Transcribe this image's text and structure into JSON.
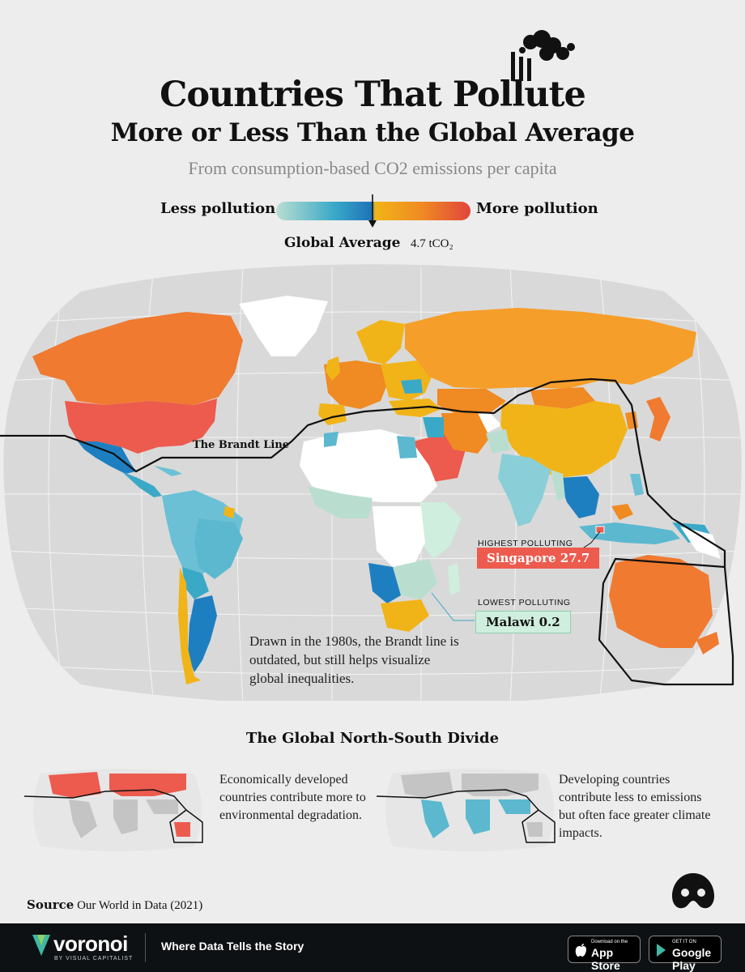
{
  "title_line1": "Countries That Pollute",
  "title_line2": "More or Less Than the Global Average",
  "subtitle": "From consumption-based CO2 emissions per capita",
  "legend": {
    "less": "Less pollution",
    "more": "More pollution",
    "average_label": "Global Average",
    "average_value": "4.7 tCO₂",
    "colors": {
      "lowest": "#b9ded0",
      "low": "#3aa9c8",
      "below": "#1e74b8",
      "above": "#f1b418",
      "high": "#f08a22",
      "highest": "#e0453b"
    }
  },
  "map": {
    "brandt_label": "The Brandt Line",
    "highest_heading": "HIGHEST POLLUTING",
    "highest_value": "Singapore 27.7",
    "lowest_heading": "LOWEST POLLUTING",
    "lowest_value": "Malawi 0.2",
    "brandt_note": "Drawn in the 1980s, the Brandt line is outdated, but still helps visualize global inequalities."
  },
  "divide": {
    "title": "The Global North-South Divide",
    "north_text": "Economically developed countries contribute more to environmental degradation.",
    "south_text": "Developing countries contribute less to emissions but often face greater climate impacts.",
    "north_color": "#ec5b4e",
    "south_color": "#5bb8cf"
  },
  "source": {
    "label": "Source",
    "text": "Our World in Data (2021)"
  },
  "footer": {
    "brand": "voronoi",
    "brand_sub": "BY VISUAL CAPITALIST",
    "tagline": "Where Data Tells the Story",
    "appstore_small": "Download on the",
    "appstore_big": "App Store",
    "googleplay_small": "GET IT ON",
    "googleplay_big": "Google Play"
  }
}
